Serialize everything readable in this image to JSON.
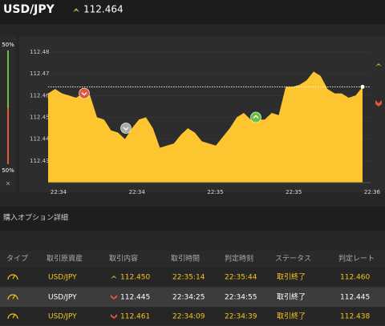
{
  "header": {
    "symbol": "USD/JPY",
    "price": 112.464
  },
  "side_bar": {
    "top": "50%",
    "bottom": "50%",
    "close": "×"
  },
  "chart_data": {
    "type": "area",
    "color": "#fdc530",
    "x_labels": [
      "22:34",
      "22:34",
      "22:35",
      "22:35",
      "22:36"
    ],
    "values": [
      112.461,
      112.463,
      112.461,
      112.46,
      112.459,
      112.461,
      112.46,
      112.45,
      112.449,
      112.444,
      112.443,
      112.44,
      112.445,
      112.449,
      112.45,
      112.445,
      112.436,
      112.437,
      112.438,
      112.442,
      112.445,
      112.443,
      112.439,
      112.438,
      112.437,
      112.441,
      112.445,
      112.45,
      112.452,
      112.449,
      112.449,
      112.449,
      112.452,
      112.451,
      112.464,
      112.464,
      112.465,
      112.467,
      112.471,
      112.469,
      112.463,
      112.461,
      112.461,
      112.459,
      112.46,
      112.464
    ],
    "ylim": [
      112.42,
      112.4855
    ],
    "yticks": [
      112.43,
      112.44,
      112.45,
      112.46,
      112.47,
      112.48
    ]
  },
  "section_title": "購入オプション詳細",
  "table": {
    "headers": [
      "タイプ",
      "取引原資産",
      "取引内容",
      "取引時間",
      "判定時刻",
      "ステータス",
      "判定レート"
    ],
    "rows": [
      {
        "asset": "USD/JPY",
        "direction": "up",
        "rate": "112.450",
        "time": "22:35:14",
        "judge_time": "22:35:44",
        "status": "取引終了",
        "result": "112.460"
      },
      {
        "asset": "USD/JPY",
        "direction": "down",
        "rate": "112.445",
        "time": "22:34:25",
        "judge_time": "22:34:55",
        "status": "取引終了",
        "result": "112.445"
      },
      {
        "asset": "USD/JPY",
        "direction": "down",
        "rate": "112.461",
        "time": "22:34:09",
        "judge_time": "22:34:39",
        "status": "取引終了",
        "result": "112.438"
      }
    ]
  }
}
